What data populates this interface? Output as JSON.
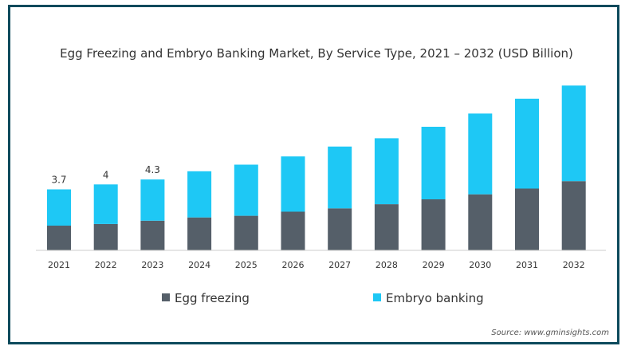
{
  "chart_data": {
    "type": "bar",
    "stacked": true,
    "title": "Egg Freezing and Embryo Banking Market, By Service Type, 2021 – 2032 (USD Billion)",
    "categories": [
      "2021",
      "2022",
      "2023",
      "2024",
      "2025",
      "2026",
      "2027",
      "2028",
      "2029",
      "2030",
      "2031",
      "2032"
    ],
    "series": [
      {
        "name": "Egg freezing",
        "color": "#555f69",
        "values": [
          1.5,
          1.6,
          1.8,
          2.0,
          2.1,
          2.35,
          2.55,
          2.8,
          3.1,
          3.4,
          3.75,
          4.2
        ]
      },
      {
        "name": "Embryo banking",
        "color": "#1ec8f5",
        "values": [
          2.2,
          2.4,
          2.5,
          2.8,
          3.1,
          3.35,
          3.75,
          4.0,
          4.4,
          4.9,
          5.45,
          5.8
        ]
      }
    ],
    "data_labels": [
      "3.7",
      "4",
      "4.3"
    ],
    "ylim": [
      0,
      10.4
    ],
    "grid": false,
    "legend_position": "bottom"
  },
  "source": "Source: www.gminsights.com"
}
